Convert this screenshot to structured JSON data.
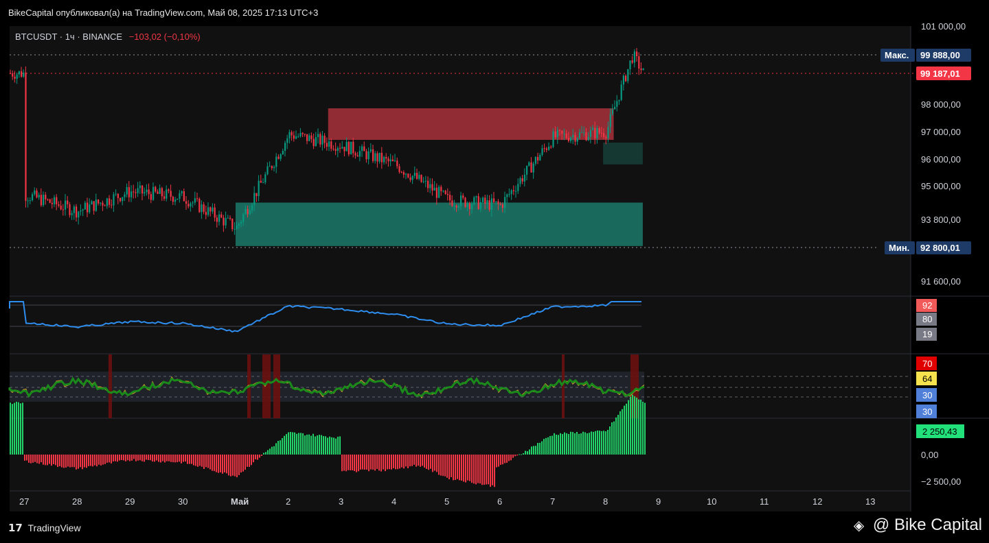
{
  "header": {
    "published": "BikeCapital опубликовал(а) на TradingView.com, Май 08, 2025 17:13 UTC+3"
  },
  "ticker": {
    "symbol": "BTCUSDT · 1ч · BINANCE",
    "change": "−103,02 (−0,10%)"
  },
  "price_axis": {
    "ticks": [
      "101 000,00",
      "98 000,00",
      "97 000,00",
      "96 000,00",
      "95 000,00",
      "93 800,00",
      "91 600,00"
    ],
    "max_label": "Макс.",
    "max_value": "99 888,00",
    "last_value": "99 187,01",
    "min_label": "Мин.",
    "min_value": "92 800,01",
    "colors": {
      "max_bg": "#1e3a66",
      "last_bg": "#f23645",
      "min_bg": "#1e3a66"
    }
  },
  "indicator1": {
    "labels": [
      "92",
      "80",
      "19"
    ],
    "colors": [
      "#f25a5a",
      "#787b86",
      "#787b86"
    ]
  },
  "indicator2": {
    "labels": [
      "70",
      "64",
      "30",
      "30"
    ],
    "colors": [
      "#e00000",
      "#f5e24c",
      "#4f7fd9",
      "#4f7fd9"
    ]
  },
  "histogram": {
    "labels": [
      "2 250,43",
      "0,00",
      "−2 500,00"
    ],
    "badge_color": "#22e07a"
  },
  "time_axis": {
    "labels": [
      "27",
      "28",
      "29",
      "30",
      "Май",
      "2",
      "3",
      "4",
      "5",
      "6",
      "7",
      "8",
      "9",
      "10",
      "11",
      "12",
      "13"
    ]
  },
  "footer": {
    "logo": "TradingView",
    "brand": "@ Bike Capital"
  },
  "chart_data": {
    "type": "candlestick",
    "symbol": "BTCUSDT",
    "interval": "1ч",
    "exchange": "BINANCE",
    "price_series_approx": [
      [
        "27",
        94700
      ],
      [
        "28",
        94100
      ],
      [
        "29",
        94800
      ],
      [
        "30",
        94600
      ],
      [
        "Май",
        93500
      ],
      [
        "2",
        96900
      ],
      [
        "3",
        96500
      ],
      [
        "4",
        95800
      ],
      [
        "5",
        94500
      ],
      [
        "6",
        94300
      ],
      [
        "7",
        96800
      ],
      [
        "8",
        97000
      ],
      [
        "8.5",
        99888
      ],
      [
        "8.7",
        99187
      ]
    ],
    "high": 99888.0,
    "low": 92800.01,
    "last": 99187.01,
    "zones": [
      {
        "type": "supply",
        "from_x": "2.75",
        "to_x": "8.15",
        "low": 96700,
        "high": 97850,
        "color": "#a8303b"
      },
      {
        "type": "demand",
        "from_x": "Май",
        "to_x": "8.7",
        "low": 92850,
        "high": 94400,
        "color": "#1b7a6a"
      },
      {
        "type": "demand",
        "from_x": "7.95",
        "to_x": "8.7",
        "low": 95800,
        "high": 96600,
        "color": "#163f3a"
      }
    ],
    "ylim": [
      91000,
      101400
    ]
  }
}
